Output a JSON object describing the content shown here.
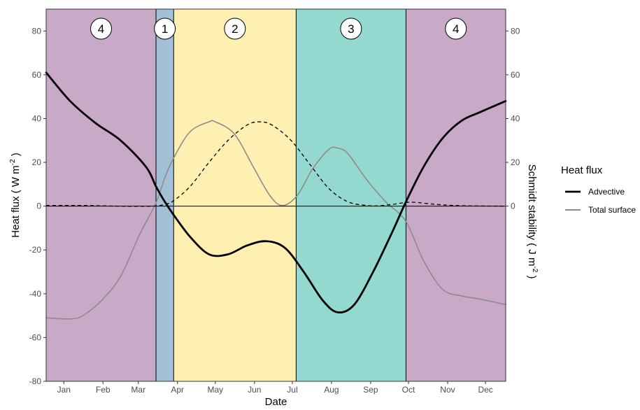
{
  "chart_data": {
    "type": "line",
    "xlabel": "Date",
    "ylabel": "Heat flux ( W m",
    "ylabel_sup": "-2",
    "ylabel_end": " )",
    "y2label": "Schmidt stability ( J m",
    "y2label_sup": "-2",
    "y2label_end": " )",
    "ylim": [
      -80,
      90
    ],
    "y_ticks": [
      -80,
      -60,
      -40,
      -20,
      0,
      20,
      40,
      60,
      80
    ],
    "y2_ticks": [
      0,
      20,
      40,
      60,
      80
    ],
    "xlim_doy": [
      1,
      365
    ],
    "month_ticks": [
      {
        "label": "Jan",
        "doy": 15
      },
      {
        "label": "Feb",
        "doy": 46
      },
      {
        "label": "Mar",
        "doy": 74
      },
      {
        "label": "Apr",
        "doy": 105
      },
      {
        "label": "May",
        "doy": 135
      },
      {
        "label": "Jun",
        "doy": 166
      },
      {
        "label": "Jul",
        "doy": 196
      },
      {
        "label": "Aug",
        "doy": 227
      },
      {
        "label": "Sep",
        "doy": 258
      },
      {
        "label": "Oct",
        "doy": 288
      },
      {
        "label": "Nov",
        "doy": 319
      },
      {
        "label": "Dec",
        "doy": 349
      }
    ],
    "phases": [
      {
        "label": "4",
        "start": 1,
        "end": 88,
        "color": "#c8a9c8"
      },
      {
        "label": "1",
        "start": 88,
        "end": 102,
        "color": "#a3c1d6"
      },
      {
        "label": "2",
        "start": 102,
        "end": 199,
        "color": "#fdf0b0"
      },
      {
        "label": "3",
        "start": 199,
        "end": 286,
        "color": "#93d9cf"
      },
      {
        "label": "4",
        "start": 286,
        "end": 365,
        "color": "#c8a9c8"
      }
    ],
    "series": [
      {
        "name": "Advective",
        "color": "#000000",
        "style": "solid",
        "x": [
          1,
          20,
          40,
          60,
          80,
          88,
          95,
          102,
          115,
          130,
          145,
          160,
          175,
          190,
          205,
          220,
          232,
          245,
          260,
          275,
          286,
          300,
          315,
          330,
          345,
          365
        ],
        "y": [
          61,
          48,
          38,
          30,
          18,
          9,
          2,
          -4,
          -14,
          -22,
          -22,
          -18,
          -16,
          -19,
          -30,
          -43,
          -48.5,
          -45,
          -30,
          -12,
          2,
          18,
          31,
          39,
          43,
          48
        ]
      },
      {
        "name": "Total surface",
        "color": "#8c8c8c",
        "style": "solid",
        "x": [
          1,
          20,
          30,
          45,
          60,
          75,
          88,
          95,
          102,
          115,
          130,
          135,
          150,
          165,
          178,
          188,
          200,
          212,
          225,
          232,
          240,
          255,
          270,
          286,
          300,
          315,
          330,
          345,
          365
        ],
        "y": [
          -51,
          -51.5,
          -50,
          -43,
          -32,
          -13,
          1.5,
          13,
          22,
          34,
          38.5,
          38.5,
          33,
          18,
          5,
          0.3,
          5,
          17,
          26,
          26.5,
          24,
          12,
          2,
          -7,
          -25,
          -38,
          -41,
          -42.5,
          -45
        ]
      },
      {
        "name": "Schmidt stability",
        "color": "#000000",
        "style": "dashed",
        "x": [
          1,
          30,
          60,
          85,
          95,
          102,
          115,
          130,
          145,
          160,
          170,
          180,
          195,
          210,
          225,
          240,
          255,
          265,
          275,
          290,
          310,
          330,
          365
        ],
        "y": [
          0.3,
          0.3,
          0,
          0,
          0.8,
          2.5,
          9,
          20,
          30,
          37,
          38.5,
          37,
          30,
          19,
          8,
          2,
          0.3,
          0.2,
          0.8,
          1.8,
          0.8,
          0.2,
          0
        ]
      }
    ],
    "legend": {
      "title": "Heat flux",
      "placement": "right",
      "entries": [
        {
          "label": "Advective",
          "color": "#000000"
        },
        {
          "label": "Total surface",
          "color": "#8c8c8c"
        }
      ]
    },
    "grid": false
  }
}
